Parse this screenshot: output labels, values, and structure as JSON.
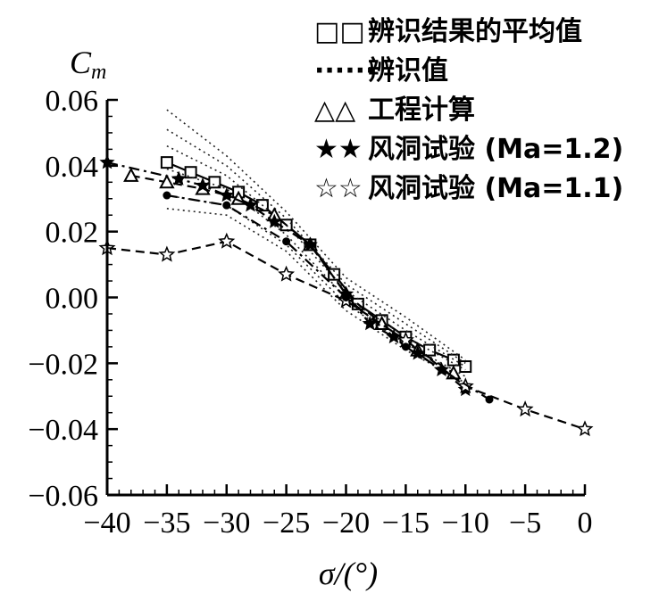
{
  "chart_data": {
    "type": "line",
    "title": "",
    "xlabel": "σ/(°)",
    "ylabel": "C_m",
    "xlim": [
      -40,
      0
    ],
    "ylim": [
      -0.06,
      0.06
    ],
    "x_ticks": [
      "−40",
      "−35",
      "−30",
      "−25",
      "−20",
      "−15",
      "−10",
      "−5",
      "0"
    ],
    "y_ticks": [
      "0.06",
      "0.04",
      "0.02",
      "0.00",
      "−0.02",
      "−0.04",
      "−0.06"
    ],
    "x_tick_values": [
      -40,
      -35,
      -30,
      -25,
      -20,
      -15,
      -10,
      -5,
      0
    ],
    "y_tick_values": [
      0.06,
      0.04,
      0.02,
      0.0,
      -0.02,
      -0.04,
      -0.06
    ],
    "legend_position": "top-right",
    "series": [
      {
        "name": "辨识结果的平均值",
        "marker": "open-square",
        "line": "solid",
        "x": [
          -35,
          -33,
          -31,
          -29,
          -27,
          -25,
          -23,
          -21,
          -19,
          -17,
          -15,
          -13,
          -11,
          -10
        ],
        "y": [
          0.041,
          0.038,
          0.035,
          0.032,
          0.028,
          0.022,
          0.016,
          0.007,
          -0.002,
          -0.007,
          -0.012,
          -0.016,
          -0.019,
          -0.021
        ]
      },
      {
        "name": "辨识值",
        "marker": "none",
        "line": "dotted",
        "curves": [
          {
            "x": [
              -35,
              -30,
              -25,
              -20,
              -15,
              -10
            ],
            "y": [
              0.057,
              0.043,
              0.026,
              0.006,
              -0.006,
              -0.019
            ]
          },
          {
            "x": [
              -35,
              -30,
              -25,
              -20,
              -15,
              -10
            ],
            "y": [
              0.051,
              0.04,
              0.024,
              0.004,
              -0.008,
              -0.02
            ]
          },
          {
            "x": [
              -35,
              -30,
              -25,
              -20,
              -15,
              -10
            ],
            "y": [
              0.046,
              0.037,
              0.022,
              0.002,
              -0.01,
              -0.021
            ]
          },
          {
            "x": [
              -35,
              -30,
              -25,
              -20,
              -15,
              -10
            ],
            "y": [
              0.039,
              0.033,
              0.019,
              0.0,
              -0.012,
              -0.022
            ]
          },
          {
            "x": [
              -35,
              -30,
              -25,
              -20,
              -15,
              -10
            ],
            "y": [
              0.031,
              0.028,
              0.016,
              -0.002,
              -0.014,
              -0.024
            ]
          },
          {
            "x": [
              -35,
              -30,
              -25,
              -20,
              -15,
              -10
            ],
            "y": [
              0.027,
              0.025,
              0.014,
              -0.004,
              -0.016,
              -0.026
            ]
          }
        ]
      },
      {
        "name": "工程计算",
        "marker": "open-triangle",
        "line": "dashed",
        "x": [
          -38,
          -35,
          -32,
          -29,
          -26,
          -23,
          -20,
          -17,
          -14,
          -11
        ],
        "y": [
          0.037,
          0.035,
          0.033,
          0.03,
          0.025,
          0.016,
          0.001,
          -0.008,
          -0.016,
          -0.023
        ]
      },
      {
        "name": "风洞试验 (Ma=1.2)",
        "marker": "filled-star",
        "line": "dash-dot",
        "x": [
          -40,
          -34,
          -32,
          -30,
          -28,
          -26,
          -23,
          -20,
          -18,
          -16,
          -14,
          -12,
          -10
        ],
        "y": [
          0.041,
          0.036,
          0.034,
          0.031,
          0.028,
          0.023,
          0.016,
          0.001,
          -0.008,
          -0.012,
          -0.017,
          -0.022,
          -0.028
        ]
      },
      {
        "name": "风洞试验 (Ma=1.1)",
        "marker": "open-star",
        "line": "dashed",
        "x": [
          -40,
          -35,
          -30,
          -25,
          -20,
          -15,
          -10,
          -5,
          0
        ],
        "y": [
          0.015,
          0.013,
          0.017,
          0.007,
          -0.001,
          -0.013,
          -0.027,
          -0.034,
          -0.04
        ]
      },
      {
        "name": "",
        "marker": "filled-circle",
        "line": "dash-dot",
        "x": [
          -35,
          -30,
          -25,
          -20,
          -15,
          -8
        ],
        "y": [
          0.031,
          0.028,
          0.017,
          0.0,
          -0.015,
          -0.031
        ]
      }
    ]
  },
  "legend": [
    {
      "symbol": "□□",
      "label": "辨识结果的平均值"
    },
    {
      "symbol": "······",
      "label": "辨识值"
    },
    {
      "symbol": "△△",
      "label": "工程计算"
    },
    {
      "symbol": "★★",
      "label": "风洞试验 (Ma=1.2)"
    },
    {
      "symbol": "☆☆",
      "label": "风洞试验 (Ma=1.1)"
    }
  ]
}
